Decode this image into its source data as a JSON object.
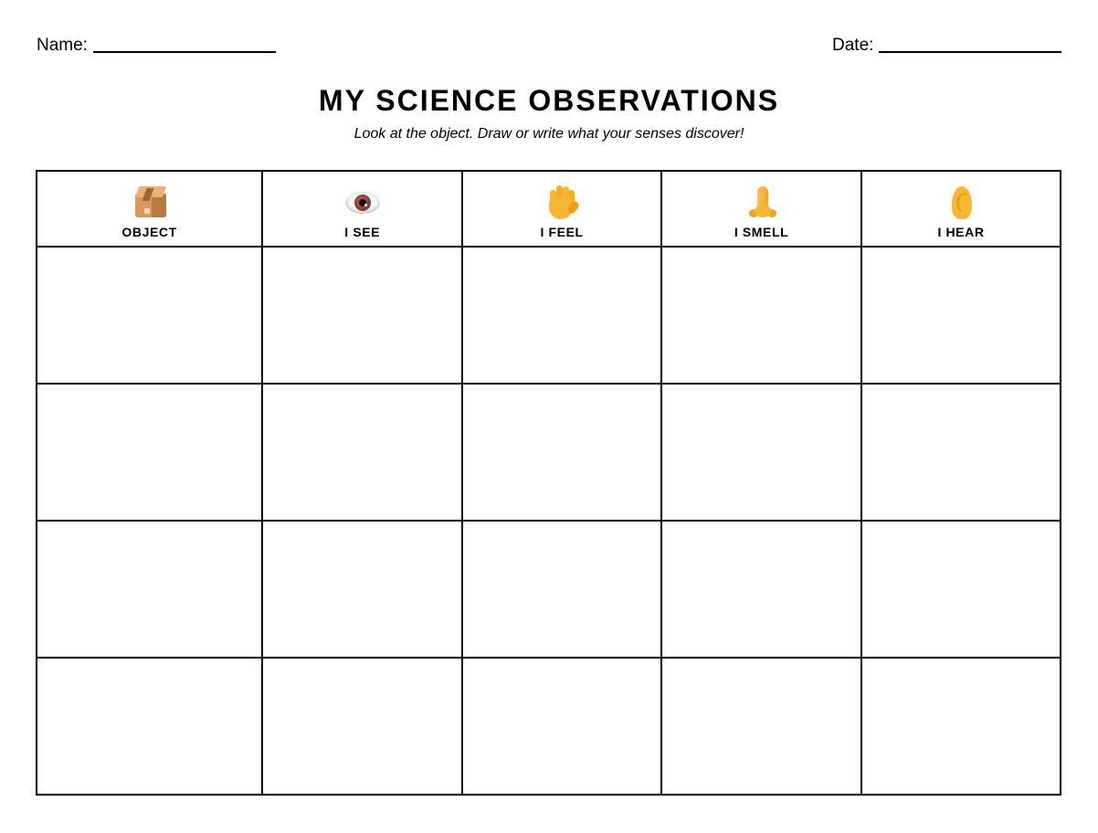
{
  "header": {
    "name_label": "Name:",
    "date_label": "Date:",
    "title": "MY SCIENCE OBSERVATIONS",
    "subtitle": "Look at the object. Draw or write what your senses discover!"
  },
  "table": {
    "columns": [
      {
        "key": "object",
        "label": "OBJECT",
        "icon": "package-box-icon"
      },
      {
        "key": "see",
        "label": "I SEE",
        "icon": "eye-icon"
      },
      {
        "key": "feel",
        "label": "I FEEL",
        "icon": "raised-hand-icon"
      },
      {
        "key": "smell",
        "label": "I SMELL",
        "icon": "nose-icon"
      },
      {
        "key": "hear",
        "label": "I HEAR",
        "icon": "ear-icon"
      }
    ],
    "rows": [
      {
        "object": "",
        "see": "",
        "feel": "",
        "smell": "",
        "hear": ""
      },
      {
        "object": "",
        "see": "",
        "feel": "",
        "smell": "",
        "hear": ""
      },
      {
        "object": "",
        "see": "",
        "feel": "",
        "smell": "",
        "hear": ""
      },
      {
        "object": "",
        "see": "",
        "feel": "",
        "smell": "",
        "hear": ""
      }
    ]
  },
  "colors": {
    "text": "#000000",
    "border": "#000000",
    "background": "#ffffff",
    "icon_yellow": "#f7b733",
    "box_brown": "#d89a5c"
  }
}
